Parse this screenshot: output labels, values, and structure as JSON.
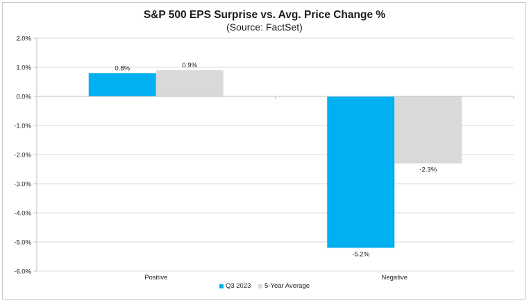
{
  "chart_data": {
    "type": "bar",
    "title": "S&P 500 EPS Surprise vs. Avg. Price Change %",
    "subtitle": "(Source: FactSet)",
    "xlabel": "",
    "ylabel": "",
    "categories": [
      "Positive",
      "Negative"
    ],
    "series": [
      {
        "name": "Q3 2023",
        "values": [
          0.8,
          -5.2
        ],
        "labels": [
          "0.8%",
          "-5.2%"
        ],
        "color": "#00b0f0"
      },
      {
        "name": "5-Year Average",
        "values": [
          0.9,
          -2.3
        ],
        "labels": [
          "0.9%",
          "-2.3%"
        ],
        "color": "#d9d9d9"
      }
    ],
    "ylim": [
      -6.0,
      2.0
    ],
    "yticks": [
      2.0,
      1.0,
      0.0,
      -1.0,
      -2.0,
      -3.0,
      -4.0,
      -5.0,
      -6.0
    ],
    "ytick_labels": [
      "2.0%",
      "1.0%",
      "0.0%",
      "-1.0%",
      "-2.0%",
      "-3.0%",
      "-4.0%",
      "-5.0%",
      "-6.0%"
    ],
    "grid": true,
    "legend_position": "bottom",
    "colors": {
      "gridline": "#d9d9d9",
      "axis": "#bfbfbf"
    }
  }
}
